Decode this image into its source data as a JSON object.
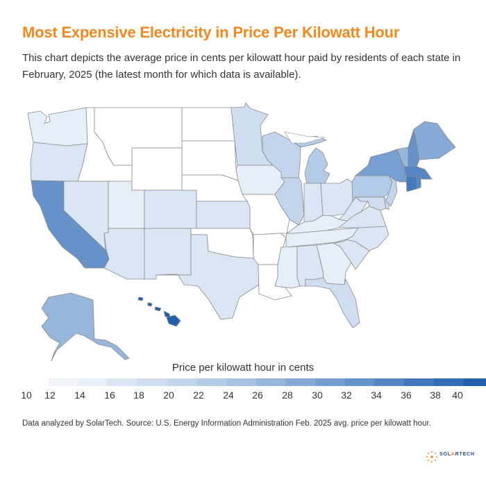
{
  "header": {
    "title": "Most Expensive Electricity in Price Per Kilowatt Hour",
    "subtitle": "This chart depicts the average price in cents per kilowatt hour paid by residents of each state in February, 2025 (the latest month for which data is available)."
  },
  "legend": {
    "title": "Price per kilowatt hour in cents",
    "ticks": [
      "10",
      "12",
      "14",
      "16",
      "18",
      "20",
      "22",
      "24",
      "26",
      "28",
      "30",
      "32",
      "34",
      "36",
      "38",
      "40"
    ],
    "colors": [
      "#f0f4fa",
      "#e6eef8",
      "#dbe6f4",
      "#cfdef0",
      "#c2d5ec",
      "#b4cbe7",
      "#a6c1e2",
      "#97b6dc",
      "#87aad6",
      "#779ed0",
      "#6692ca",
      "#5585c3",
      "#4478bc",
      "#336bb4",
      "#235fad"
    ]
  },
  "footer": {
    "source": "Data analyzed by SolarTech. Source: U.S. Energy Information Administration Feb. 2025 avg. price per kilowatt hour."
  },
  "brand": {
    "logo_left": "SOL",
    "logo_o": "A",
    "logo_right": "RTECH",
    "accent": "#f5871f",
    "navy": "#1e4f8a"
  },
  "map_data": {
    "states": [
      {
        "id": "WA",
        "tone": 1
      },
      {
        "id": "OR",
        "tone": 2
      },
      {
        "id": "CA",
        "tone": 10
      },
      {
        "id": "NV",
        "tone": 2
      },
      {
        "id": "ID",
        "tone": 0
      },
      {
        "id": "MT",
        "tone": 0
      },
      {
        "id": "WY",
        "tone": 0
      },
      {
        "id": "UT",
        "tone": 1
      },
      {
        "id": "CO",
        "tone": 2
      },
      {
        "id": "AZ",
        "tone": 2
      },
      {
        "id": "NM",
        "tone": 2
      },
      {
        "id": "ND",
        "tone": 0
      },
      {
        "id": "SD",
        "tone": 0
      },
      {
        "id": "NE",
        "tone": 0
      },
      {
        "id": "KS",
        "tone": 2
      },
      {
        "id": "OK",
        "tone": 0
      },
      {
        "id": "TX",
        "tone": 2
      },
      {
        "id": "MN",
        "tone": 3
      },
      {
        "id": "IA",
        "tone": 1
      },
      {
        "id": "MO",
        "tone": 0
      },
      {
        "id": "AR",
        "tone": 0
      },
      {
        "id": "LA",
        "tone": 0
      },
      {
        "id": "WI",
        "tone": 4
      },
      {
        "id": "IL",
        "tone": 4
      },
      {
        "id": "MI",
        "tone": 5
      },
      {
        "id": "IN",
        "tone": 2
      },
      {
        "id": "OH",
        "tone": 2
      },
      {
        "id": "KY",
        "tone": 1
      },
      {
        "id": "TN",
        "tone": 1
      },
      {
        "id": "MS",
        "tone": 1
      },
      {
        "id": "AL",
        "tone": 2
      },
      {
        "id": "GA",
        "tone": 1
      },
      {
        "id": "FL",
        "tone": 3
      },
      {
        "id": "SC",
        "tone": 2
      },
      {
        "id": "NC",
        "tone": 2
      },
      {
        "id": "VA",
        "tone": 2
      },
      {
        "id": "WV",
        "tone": 2
      },
      {
        "id": "MD",
        "tone": 3
      },
      {
        "id": "DE",
        "tone": 3
      },
      {
        "id": "PA",
        "tone": 5
      },
      {
        "id": "NJ",
        "tone": 4
      },
      {
        "id": "NY",
        "tone": 9
      },
      {
        "id": "VT",
        "tone": 7
      },
      {
        "id": "NH",
        "tone": 10
      },
      {
        "id": "ME",
        "tone": 8
      },
      {
        "id": "MA",
        "tone": 11
      },
      {
        "id": "CT",
        "tone": 12
      },
      {
        "id": "RI",
        "tone": 11
      },
      {
        "id": "AK",
        "tone": 7
      },
      {
        "id": "HI",
        "tone": 14
      }
    ]
  }
}
